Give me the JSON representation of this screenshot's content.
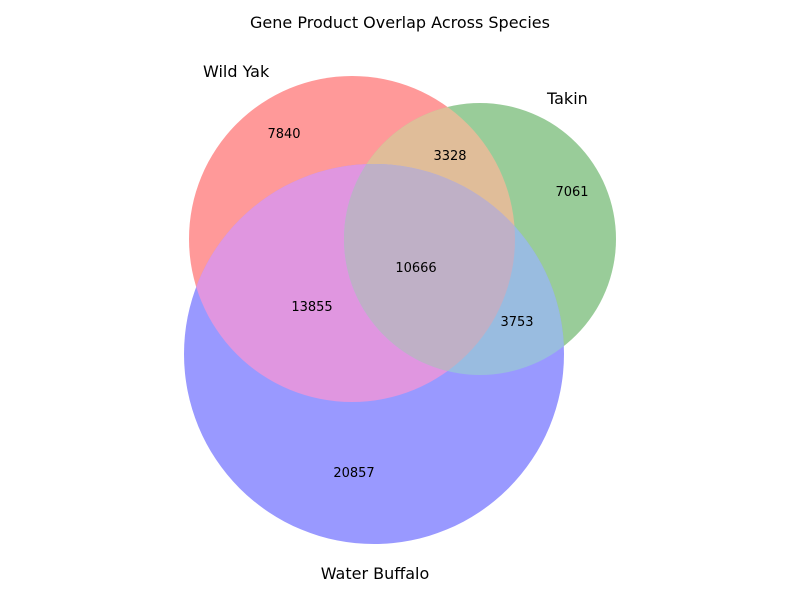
{
  "title": "Gene Product Overlap Across Species",
  "sets": {
    "wild_yak": {
      "label": "Wild Yak",
      "color": "#ff9999"
    },
    "takin": {
      "label": "Takin",
      "color": "#99cc99"
    },
    "water_buffalo": {
      "label": "Water Buffalo",
      "color": "#9999ff"
    }
  },
  "overlap_colors": {
    "wild_yak_takin": "#e0bd99",
    "wild_yak_water_buffalo": "#e096e0",
    "takin_water_buffalo": "#99bce0",
    "all": "#bfb0c6"
  },
  "regions": {
    "wild_yak_only": "7840",
    "takin_only": "7061",
    "water_buffalo_only": "20857",
    "wild_yak_takin": "3328",
    "wild_yak_water_buffalo": "13855",
    "takin_water_buffalo": "3753",
    "all": "10666"
  }
}
